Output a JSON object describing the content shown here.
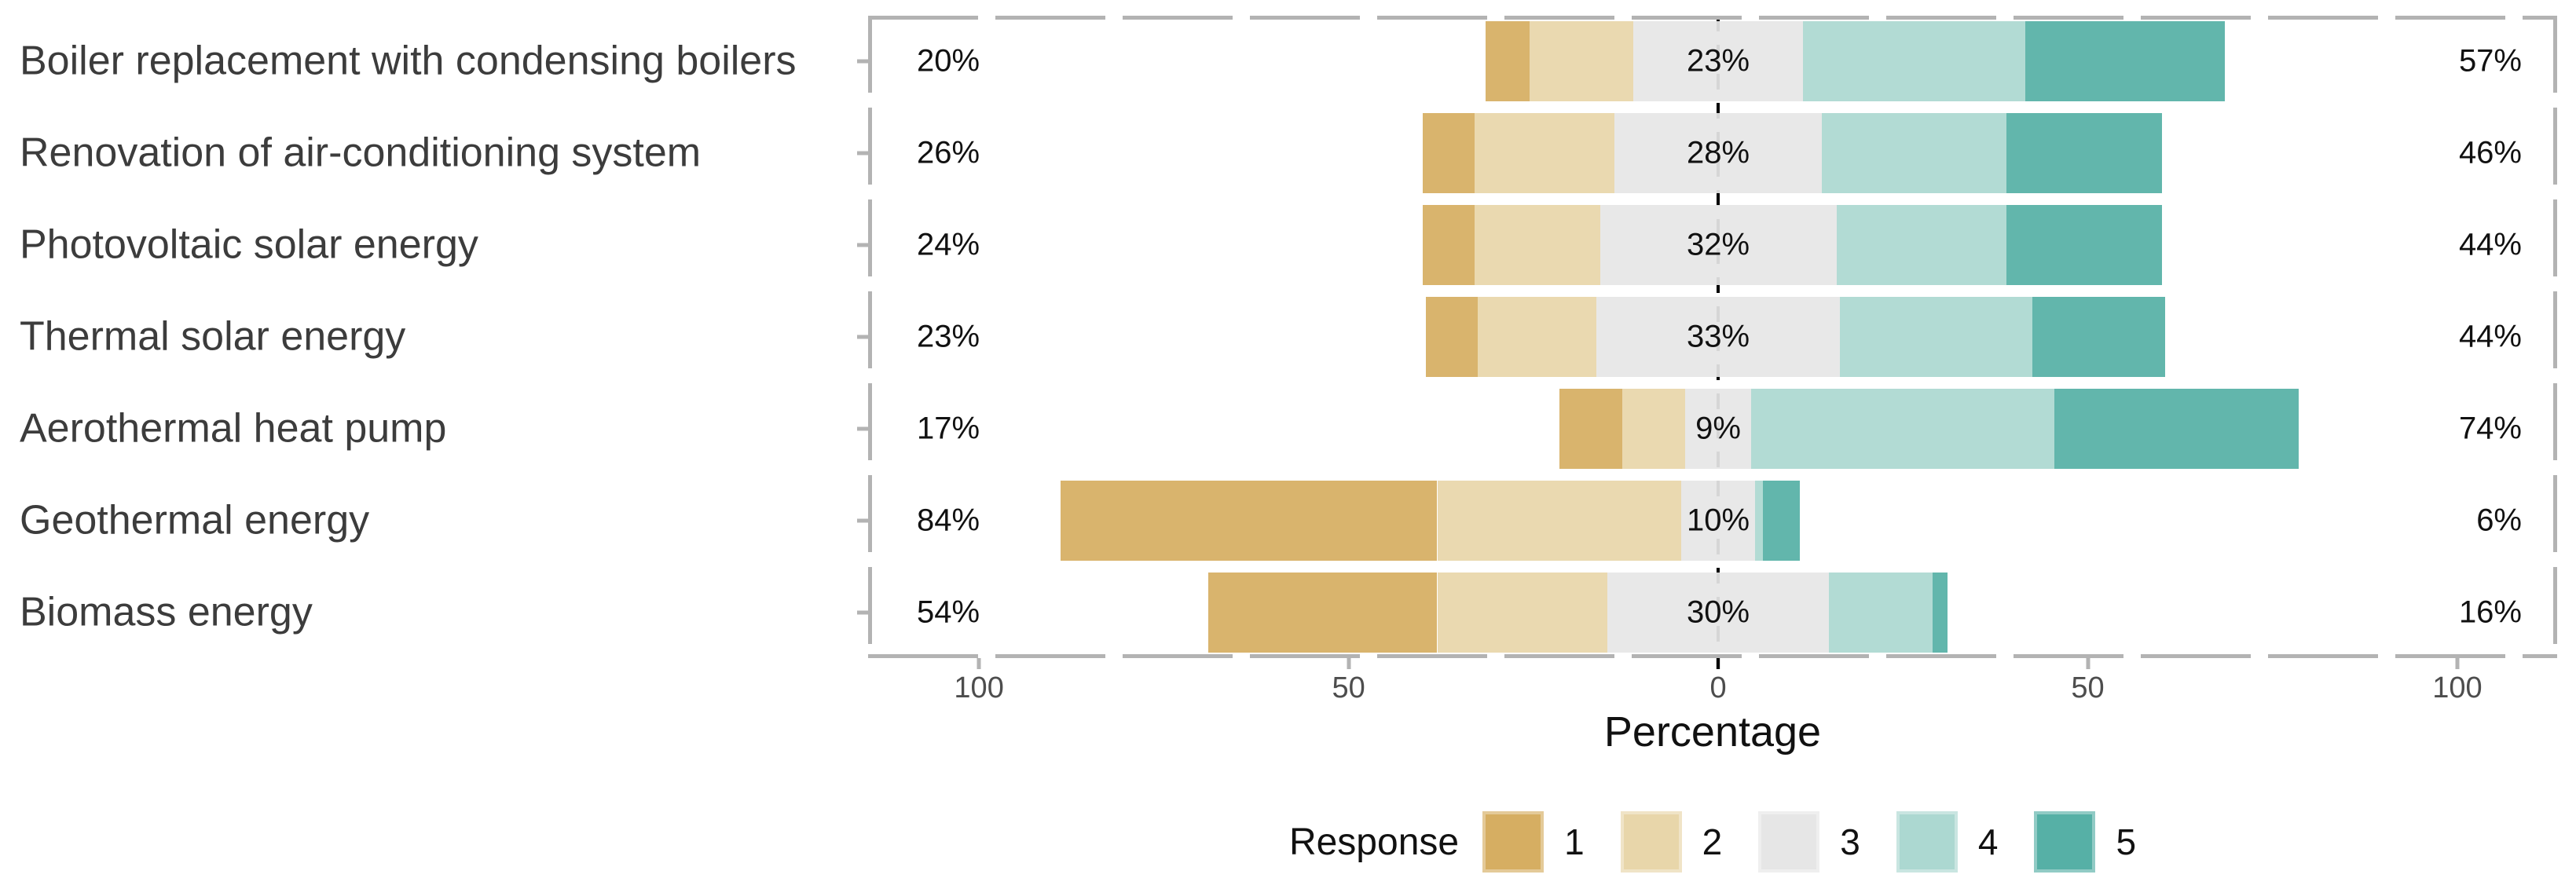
{
  "chart_data": {
    "type": "bar",
    "variant": "diverging-stacked-likert",
    "categories": [
      "Boiler replacement with condensing boilers",
      "Renovation of air-conditioning system",
      "Photovoltaic solar energy",
      "Thermal solar energy",
      "Aerothermal heat pump",
      "Geothermal energy",
      "Biomass energy"
    ],
    "series": [
      {
        "name": "1",
        "color": "#D6AE62",
        "values": [
          6,
          7,
          7,
          7,
          8.5,
          51,
          31
        ]
      },
      {
        "name": "2",
        "color": "#E8D6AA",
        "values": [
          14,
          19,
          17,
          16,
          8.5,
          33,
          23
        ]
      },
      {
        "name": "3",
        "color": "#E6E6E6",
        "values": [
          23,
          28,
          32,
          33,
          9,
          10,
          30
        ]
      },
      {
        "name": "4",
        "color": "#ACD8D1",
        "values": [
          30,
          25,
          23,
          26,
          41,
          1,
          14
        ]
      },
      {
        "name": "5",
        "color": "#56B0A6",
        "values": [
          27,
          21,
          21,
          18,
          33,
          5,
          2
        ]
      }
    ],
    "neutral_series": "3",
    "neutral_centered_on_zero": true,
    "row_labels": {
      "left": [
        "20%",
        "26%",
        "24%",
        "23%",
        "17%",
        "84%",
        "54%"
      ],
      "center": [
        "23%",
        "28%",
        "32%",
        "33%",
        "9%",
        "10%",
        "30%"
      ],
      "right": [
        "57%",
        "46%",
        "44%",
        "44%",
        "74%",
        "6%",
        "16%"
      ]
    },
    "xlabel": "Percentage",
    "x_ticks": [
      {
        "value": -100,
        "label": "100"
      },
      {
        "value": -50,
        "label": "50"
      },
      {
        "value": 0,
        "label": "0"
      },
      {
        "value": 50,
        "label": "50"
      },
      {
        "value": 100,
        "label": "100"
      }
    ],
    "xlim": [
      -115,
      113.5
    ],
    "zero_reference_line": "dashed",
    "grid": "off",
    "legend_position": "bottom",
    "legend": {
      "title": "Response",
      "entries": [
        {
          "label": "1",
          "color": "#D6AE62"
        },
        {
          "label": "2",
          "color": "#E8D6AA"
        },
        {
          "label": "3",
          "color": "#E6E6E6"
        },
        {
          "label": "4",
          "color": "#ACD8D1"
        },
        {
          "label": "5",
          "color": "#56B0A6"
        }
      ]
    }
  },
  "colors": {
    "response_1": "#D6AE62",
    "response_2": "#E8D6AA",
    "response_3": "#E6E6E6",
    "response_4": "#ACD8D1",
    "response_5": "#56B0A6",
    "panel_border": "#B3B3B3",
    "tick_label": "#4D4D4D",
    "category_label": "#3C3C3C",
    "zero_line": "#000000",
    "background": "#FFFFFF"
  }
}
